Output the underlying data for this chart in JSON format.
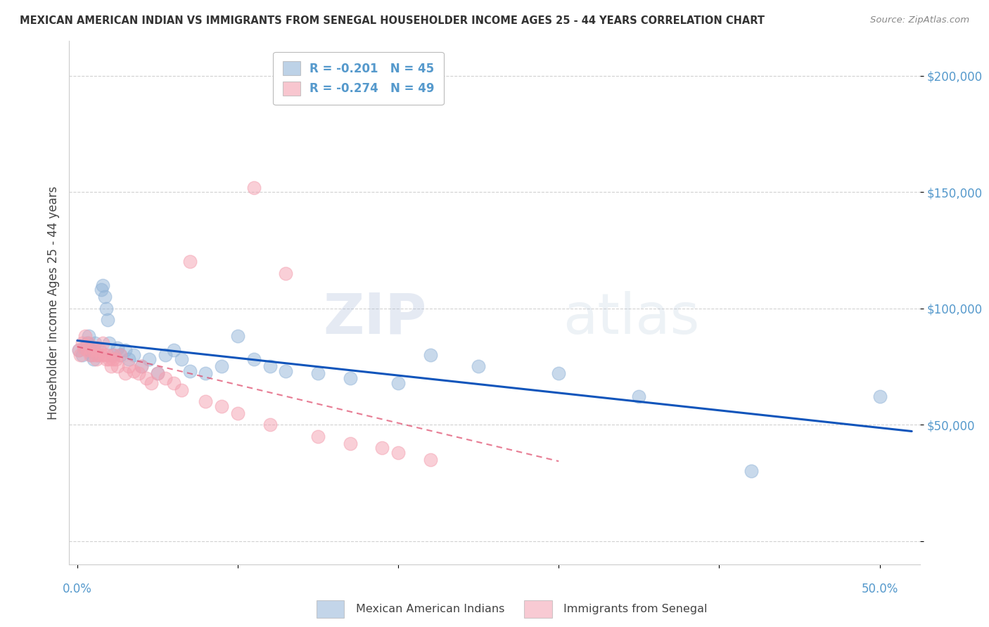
{
  "title": "MEXICAN AMERICAN INDIAN VS IMMIGRANTS FROM SENEGAL HOUSEHOLDER INCOME AGES 25 - 44 YEARS CORRELATION CHART",
  "source": "Source: ZipAtlas.com",
  "ylabel": "Householder Income Ages 25 - 44 years",
  "watermark_zip": "ZIP",
  "watermark_atlas": "atlas",
  "yticks": [
    0,
    50000,
    100000,
    150000,
    200000
  ],
  "ytick_labels": [
    "",
    "$50,000",
    "$100,000",
    "$150,000",
    "$200,000"
  ],
  "ylim": [
    -10000,
    215000
  ],
  "xlim": [
    -0.005,
    0.525
  ],
  "legend1_label": "R = -0.201   N = 45",
  "legend2_label": "R = -0.274   N = 49",
  "blue_color": "#92B4D8",
  "pink_color": "#F4A0B0",
  "line_blue": "#1155BB",
  "line_pink": "#DD4466",
  "axis_color": "#5599CC",
  "grid_color": "#CCCCCC",
  "title_color": "#333333",
  "source_color": "#888888",
  "blue_scatter_x": [
    0.001,
    0.003,
    0.005,
    0.006,
    0.007,
    0.008,
    0.009,
    0.01,
    0.011,
    0.012,
    0.013,
    0.015,
    0.016,
    0.017,
    0.018,
    0.019,
    0.02,
    0.022,
    0.025,
    0.027,
    0.03,
    0.032,
    0.035,
    0.04,
    0.045,
    0.05,
    0.055,
    0.06,
    0.065,
    0.07,
    0.08,
    0.09,
    0.1,
    0.11,
    0.12,
    0.13,
    0.15,
    0.17,
    0.2,
    0.22,
    0.25,
    0.3,
    0.35,
    0.42,
    0.5
  ],
  "blue_scatter_y": [
    82000,
    80000,
    83000,
    85000,
    88000,
    82000,
    80000,
    78000,
    85000,
    83000,
    80000,
    108000,
    110000,
    105000,
    100000,
    95000,
    85000,
    80000,
    83000,
    80000,
    82000,
    78000,
    80000,
    75000,
    78000,
    72000,
    80000,
    82000,
    78000,
    73000,
    72000,
    75000,
    88000,
    78000,
    75000,
    73000,
    72000,
    70000,
    68000,
    80000,
    75000,
    72000,
    62000,
    30000,
    62000
  ],
  "pink_scatter_x": [
    0.001,
    0.002,
    0.003,
    0.004,
    0.005,
    0.006,
    0.007,
    0.008,
    0.009,
    0.01,
    0.011,
    0.012,
    0.013,
    0.014,
    0.015,
    0.016,
    0.017,
    0.018,
    0.019,
    0.02,
    0.021,
    0.022,
    0.023,
    0.024,
    0.025,
    0.027,
    0.03,
    0.032,
    0.035,
    0.038,
    0.04,
    0.043,
    0.046,
    0.05,
    0.055,
    0.06,
    0.065,
    0.07,
    0.08,
    0.09,
    0.1,
    0.11,
    0.12,
    0.13,
    0.15,
    0.17,
    0.19,
    0.2,
    0.22
  ],
  "pink_scatter_y": [
    82000,
    80000,
    85000,
    83000,
    88000,
    82000,
    85000,
    80000,
    82000,
    83000,
    80000,
    78000,
    80000,
    82000,
    80000,
    85000,
    80000,
    78000,
    80000,
    78000,
    75000,
    78000,
    80000,
    78000,
    75000,
    80000,
    72000,
    75000,
    73000,
    72000,
    75000,
    70000,
    68000,
    72000,
    70000,
    68000,
    65000,
    120000,
    60000,
    58000,
    55000,
    152000,
    50000,
    115000,
    45000,
    42000,
    40000,
    38000,
    35000
  ]
}
